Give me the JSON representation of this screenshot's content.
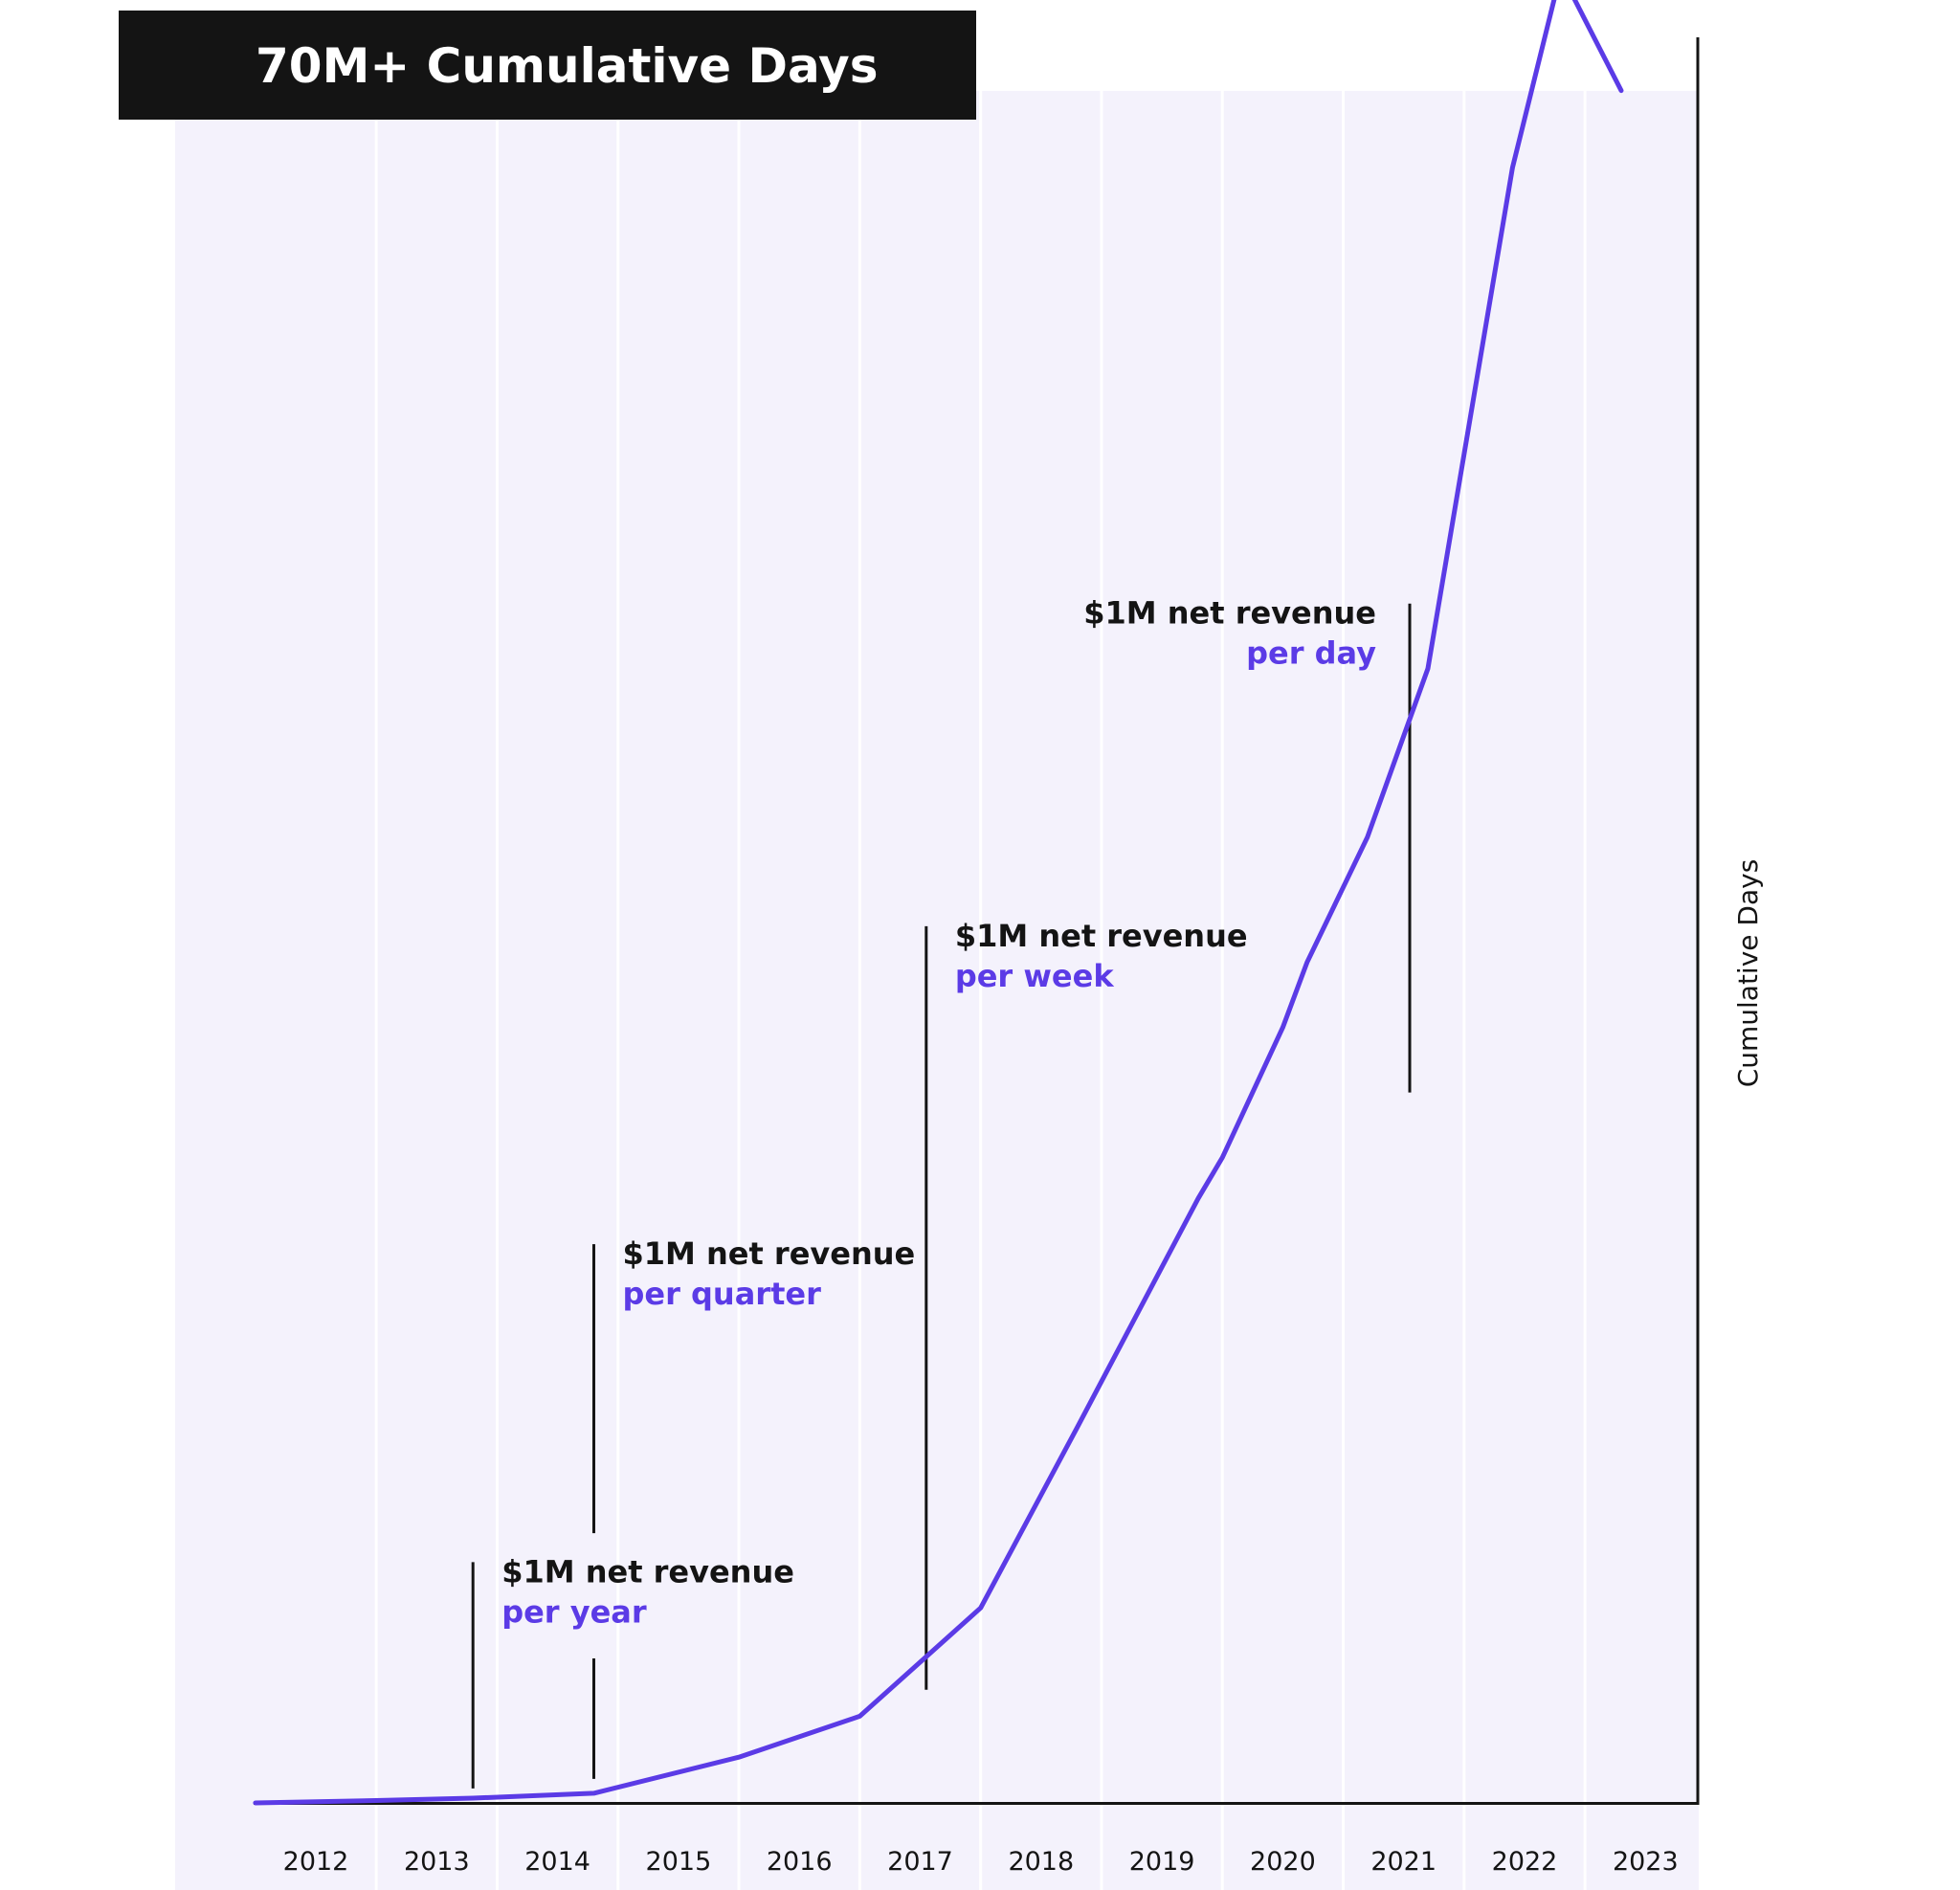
{
  "chart_data": {
    "type": "line",
    "title": "70M+ Cumulative Days",
    "xlabel": "",
    "ylabel": "Cumulative Days",
    "categories": [
      "2012",
      "2013",
      "2014",
      "2015",
      "2016",
      "2017",
      "2018",
      "2019",
      "2020",
      "2021",
      "2022",
      "2023"
    ],
    "y_axis_ticks_shown": false,
    "ylim": [
      0,
      72000000
    ],
    "grid": "vertical separators between years",
    "series": [
      {
        "x": [
          2011.5,
          2012.5,
          2013.3,
          2014.3,
          2015.5,
          2016.5,
          2017.5,
          2018.3,
          2019.3,
          2019.5,
          2020.0,
          2020.2,
          2020.7,
          2021.2,
          2021.9,
          2022.3,
          2022.8
        ],
        "values": [
          0,
          100000,
          200000,
          400000,
          1900000,
          3600000,
          8100000,
          15600000,
          25100000,
          26800000,
          32200000,
          34900000,
          40100000,
          47100000,
          67900000,
          76000000,
          71100000
        ]
      }
    ],
    "annotations": [
      {
        "x": 2013.3,
        "y_bottom": 600000,
        "y_top": 10000000,
        "line1": "$1M net revenue",
        "line2": "per year",
        "text_side": "right"
      },
      {
        "x": 2014.3,
        "y_bottom": 1000000,
        "y_top": 6000000,
        "line1": "",
        "line2": "",
        "text_side": "none"
      },
      {
        "x": 2014.3,
        "y_bottom": 11200000,
        "y_top": 23200000,
        "line1": "$1M net revenue",
        "line2": "per quarter",
        "text_side": "right"
      },
      {
        "x": 2017.05,
        "y_bottom": 4700000,
        "y_top": 36400000,
        "line1": "$1M net revenue",
        "line2": "per week",
        "text_side": "right"
      },
      {
        "x": 2021.05,
        "y_bottom": 29500000,
        "y_top": 49800000,
        "line1": "$1M net revenue",
        "line2": "per day",
        "text_side": "left"
      }
    ],
    "colors": {
      "line": "#5b3be6",
      "accent_text": "#5b3be6",
      "plot_background": "#f4f2fc",
      "title_background": "#141414",
      "axis": "#141414"
    }
  }
}
